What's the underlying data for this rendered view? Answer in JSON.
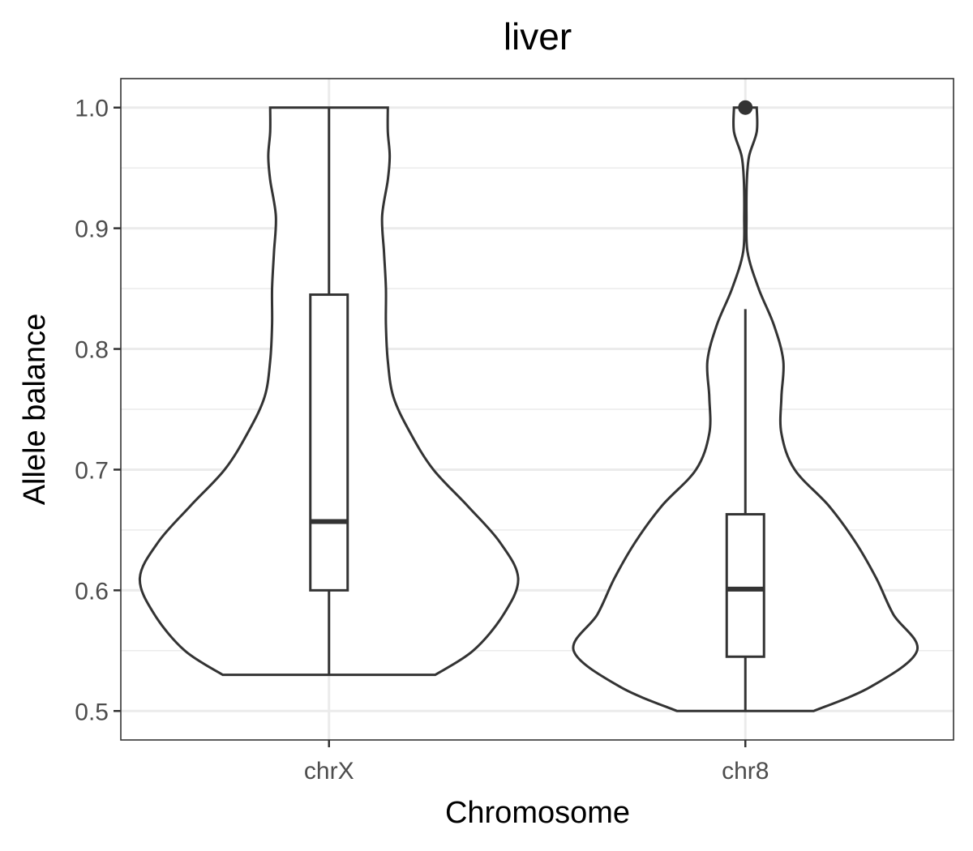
{
  "chart_data": {
    "type": "violin",
    "title": "liver",
    "xlabel": "Chromosome",
    "ylabel": "Allele balance",
    "categories": [
      "chrX",
      "chr8"
    ],
    "ylim": [
      0.476,
      1.024
    ],
    "yticks": [
      0.5,
      0.6,
      0.7,
      0.8,
      0.9,
      1.0
    ],
    "ytick_labels": [
      "0.5",
      "0.6",
      "0.7",
      "0.8",
      "0.9",
      "1.0"
    ],
    "grid": true,
    "series": [
      {
        "category": "chrX",
        "violin_density": [
          [
            0.53,
            0.56
          ],
          [
            0.55,
            0.76
          ],
          [
            0.58,
            0.92
          ],
          [
            0.61,
            0.997
          ],
          [
            0.64,
            0.9
          ],
          [
            0.67,
            0.73
          ],
          [
            0.7,
            0.55
          ],
          [
            0.73,
            0.43
          ],
          [
            0.76,
            0.34
          ],
          [
            0.79,
            0.31
          ],
          [
            0.82,
            0.3
          ],
          [
            0.85,
            0.3
          ],
          [
            0.88,
            0.29
          ],
          [
            0.91,
            0.28
          ],
          [
            0.94,
            0.31
          ],
          [
            0.96,
            0.32
          ],
          [
            0.98,
            0.31
          ],
          [
            1.0,
            0.31
          ]
        ],
        "box": {
          "q1": 0.6,
          "median": 0.657,
          "q3": 0.845,
          "whisker_low": 0.53,
          "whisker_high": 1.0
        },
        "outliers": []
      },
      {
        "category": "chr8",
        "violin_density": [
          [
            0.5,
            0.36
          ],
          [
            0.52,
            0.66
          ],
          [
            0.55,
            0.905
          ],
          [
            0.58,
            0.78
          ],
          [
            0.61,
            0.69
          ],
          [
            0.64,
            0.58
          ],
          [
            0.67,
            0.44
          ],
          [
            0.7,
            0.26
          ],
          [
            0.73,
            0.19
          ],
          [
            0.76,
            0.19
          ],
          [
            0.79,
            0.2
          ],
          [
            0.82,
            0.15
          ],
          [
            0.85,
            0.07
          ],
          [
            0.88,
            0.012
          ],
          [
            0.91,
            0.006
          ],
          [
            0.94,
            0.008
          ],
          [
            0.96,
            0.02
          ],
          [
            0.98,
            0.06
          ],
          [
            1.0,
            0.06
          ]
        ],
        "box": {
          "q1": 0.545,
          "median": 0.601,
          "q3": 0.663,
          "whisker_low": 0.5,
          "whisker_high": 0.833
        },
        "outliers": [
          1.0
        ]
      }
    ]
  }
}
